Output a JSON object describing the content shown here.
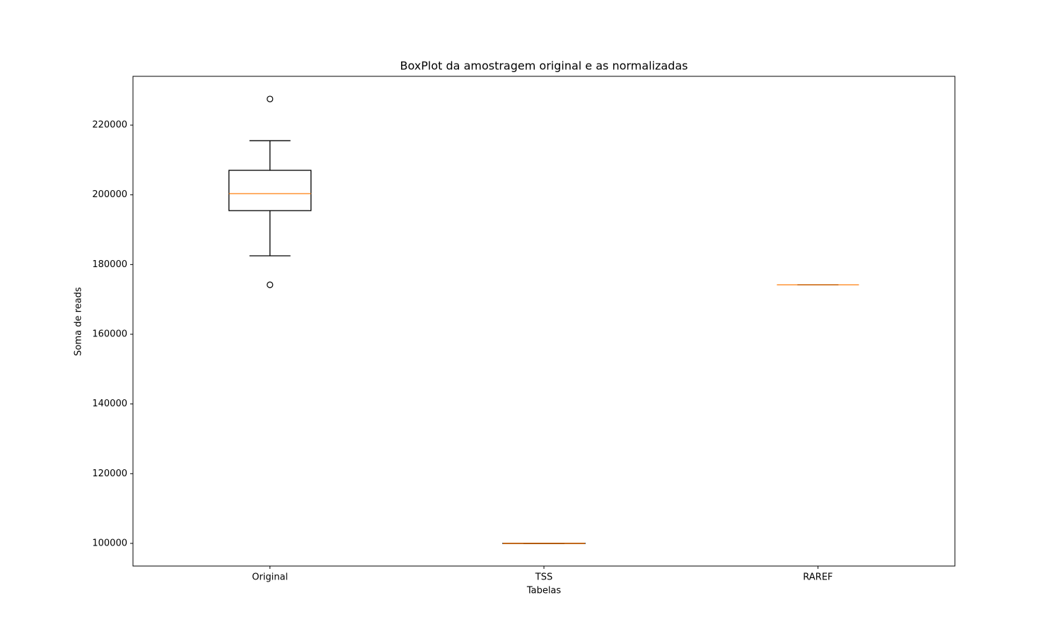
{
  "chart_data": {
    "type": "box",
    "title": "BoxPlot da amostragem original e as normalizadas",
    "x_label": "Tabelas",
    "y_label": "Soma de reads",
    "categories": [
      "Original",
      "TSS",
      "RAREF"
    ],
    "boxes": [
      {
        "whislo": 182500,
        "q1": 195470,
        "med": 200340,
        "q3": 207030,
        "whishi": 215540,
        "fliers": [
          227500,
          174190
        ]
      },
      {
        "whislo": 99950,
        "q1": 99950,
        "med": 100000,
        "q3": 100050,
        "whishi": 100050,
        "fliers": []
      },
      {
        "whislo": 174190,
        "q1": 174190,
        "med": 174190,
        "q3": 174190,
        "whishi": 174190,
        "fliers": []
      }
    ],
    "box_color": "#000000",
    "median_color": "#ff7f0e",
    "ylim": [
      93500,
      234000
    ],
    "yticks": [
      100000,
      120000,
      140000,
      160000,
      180000,
      200000,
      220000
    ]
  }
}
